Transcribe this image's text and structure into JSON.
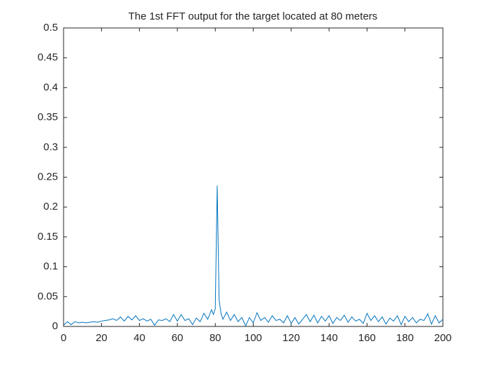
{
  "chart_data": {
    "type": "line",
    "title": "The 1st FFT output for the target located at 80 meters",
    "x": [
      0,
      2,
      4,
      6,
      8,
      10,
      12,
      14,
      16,
      18,
      20,
      22,
      24,
      26,
      28,
      30,
      32,
      34,
      36,
      38,
      40,
      42,
      44,
      46,
      48,
      50,
      52,
      54,
      56,
      58,
      60,
      62,
      64,
      66,
      68,
      70,
      72,
      74,
      76,
      78,
      79,
      80,
      81,
      82,
      83,
      84,
      86,
      88,
      90,
      92,
      94,
      96,
      98,
      100,
      102,
      104,
      106,
      108,
      110,
      112,
      114,
      116,
      118,
      120,
      122,
      124,
      126,
      128,
      130,
      132,
      134,
      136,
      138,
      140,
      142,
      144,
      146,
      148,
      150,
      152,
      154,
      156,
      158,
      160,
      162,
      164,
      166,
      168,
      170,
      172,
      174,
      176,
      178,
      180,
      182,
      184,
      186,
      188,
      190,
      192,
      194,
      196,
      198,
      200
    ],
    "series": [
      {
        "color": "#0072bd",
        "values": [
          0.002,
          0.008,
          0.003,
          0.008,
          0.006,
          0.007,
          0.006,
          0.007,
          0.008,
          0.007,
          0.009,
          0.01,
          0.011,
          0.013,
          0.01,
          0.016,
          0.009,
          0.017,
          0.011,
          0.018,
          0.01,
          0.013,
          0.009,
          0.012,
          0.002,
          0.011,
          0.01,
          0.013,
          0.008,
          0.02,
          0.009,
          0.02,
          0.01,
          0.013,
          0.003,
          0.014,
          0.008,
          0.022,
          0.012,
          0.028,
          0.02,
          0.03,
          0.236,
          0.045,
          0.022,
          0.012,
          0.024,
          0.01,
          0.02,
          0.008,
          0.015,
          0.001,
          0.015,
          0.006,
          0.023,
          0.01,
          0.015,
          0.007,
          0.018,
          0.01,
          0.012,
          0.006,
          0.018,
          0.005,
          0.015,
          0.004,
          0.012,
          0.02,
          0.008,
          0.019,
          0.006,
          0.017,
          0.009,
          0.018,
          0.005,
          0.015,
          0.01,
          0.019,
          0.007,
          0.016,
          0.009,
          0.012,
          0.005,
          0.022,
          0.01,
          0.018,
          0.008,
          0.016,
          0.004,
          0.014,
          0.009,
          0.018,
          0.003,
          0.017,
          0.008,
          0.015,
          0.006,
          0.012,
          0.01,
          0.021,
          0.004,
          0.018,
          0.006,
          0.012
        ]
      }
    ],
    "xlim": [
      0,
      200
    ],
    "xticks": [
      0,
      20,
      40,
      60,
      80,
      100,
      120,
      140,
      160,
      180,
      200
    ],
    "ylim": [
      0,
      0.5
    ],
    "yticks": [
      0,
      0.05,
      0.1,
      0.15,
      0.2,
      0.25,
      0.3,
      0.35,
      0.4,
      0.45,
      0.5
    ]
  }
}
